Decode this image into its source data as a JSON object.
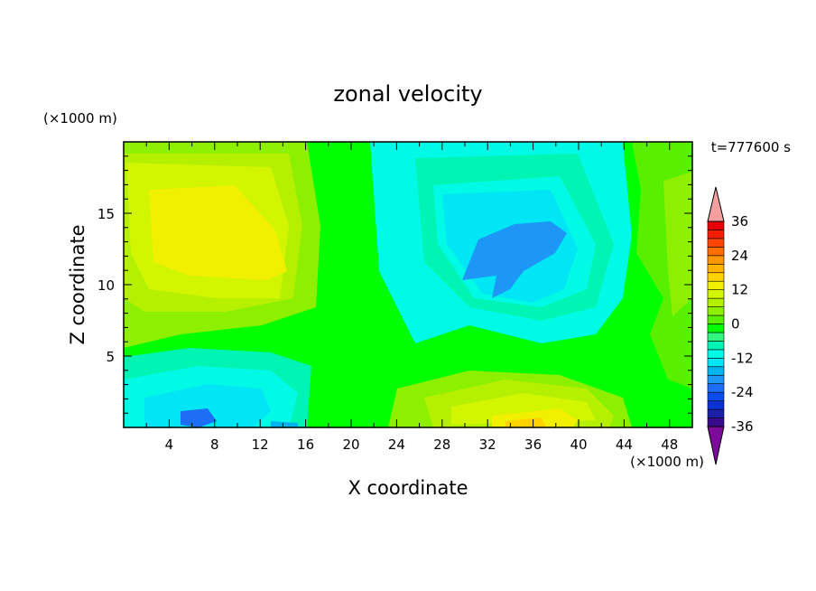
{
  "chart_data": {
    "type": "heatmap",
    "title": "zonal velocity",
    "xlabel": "X coordinate",
    "ylabel": "Z coordinate",
    "x_unit": "(×1000 m)",
    "y_unit": "(×1000 m)",
    "time_label": "t=777600 s",
    "xlim": [
      0,
      50
    ],
    "ylim": [
      0,
      20
    ],
    "xticks": [
      4,
      8,
      12,
      16,
      20,
      24,
      28,
      32,
      36,
      40,
      44,
      48
    ],
    "yticks": [
      5,
      10,
      15
    ],
    "colorbar": {
      "levels": [
        -39,
        -36,
        -33,
        -30,
        -27,
        -24,
        -21,
        -18,
        -15,
        -12,
        -9,
        -6,
        -3,
        0,
        3,
        6,
        9,
        12,
        15,
        18,
        21,
        24,
        27,
        30,
        33,
        36,
        39
      ],
      "tick_labels": [
        "36",
        "24",
        "12",
        "0",
        "-12",
        "-24",
        "-36"
      ],
      "colors": [
        "#7d0a9b",
        "#3a0a8c",
        "#1b1fa8",
        "#0a32d2",
        "#0a4ef0",
        "#1e6ef5",
        "#1e96f5",
        "#00b4f0",
        "#00e6f5",
        "#00fae6",
        "#00f5b4",
        "#32f582",
        "#00ff00",
        "#58f000",
        "#8cf000",
        "#b4f000",
        "#d2f500",
        "#f0f000",
        "#ffd200",
        "#ffb400",
        "#ff9600",
        "#ff6e00",
        "#ff4600",
        "#f51e00",
        "#e60000",
        "#f5a0a0"
      ]
    },
    "features": [
      {
        "x": 10,
        "y": 13.5,
        "value": 14,
        "label": "positive core upper-left"
      },
      {
        "x": 33,
        "y": 12,
        "value": -12,
        "label": "negative core upper-right"
      },
      {
        "x": 7,
        "y": 0.8,
        "value": -18,
        "label": "negative near surface left"
      },
      {
        "x": 35,
        "y": 0.8,
        "value": 14,
        "label": "positive near surface right"
      }
    ]
  }
}
